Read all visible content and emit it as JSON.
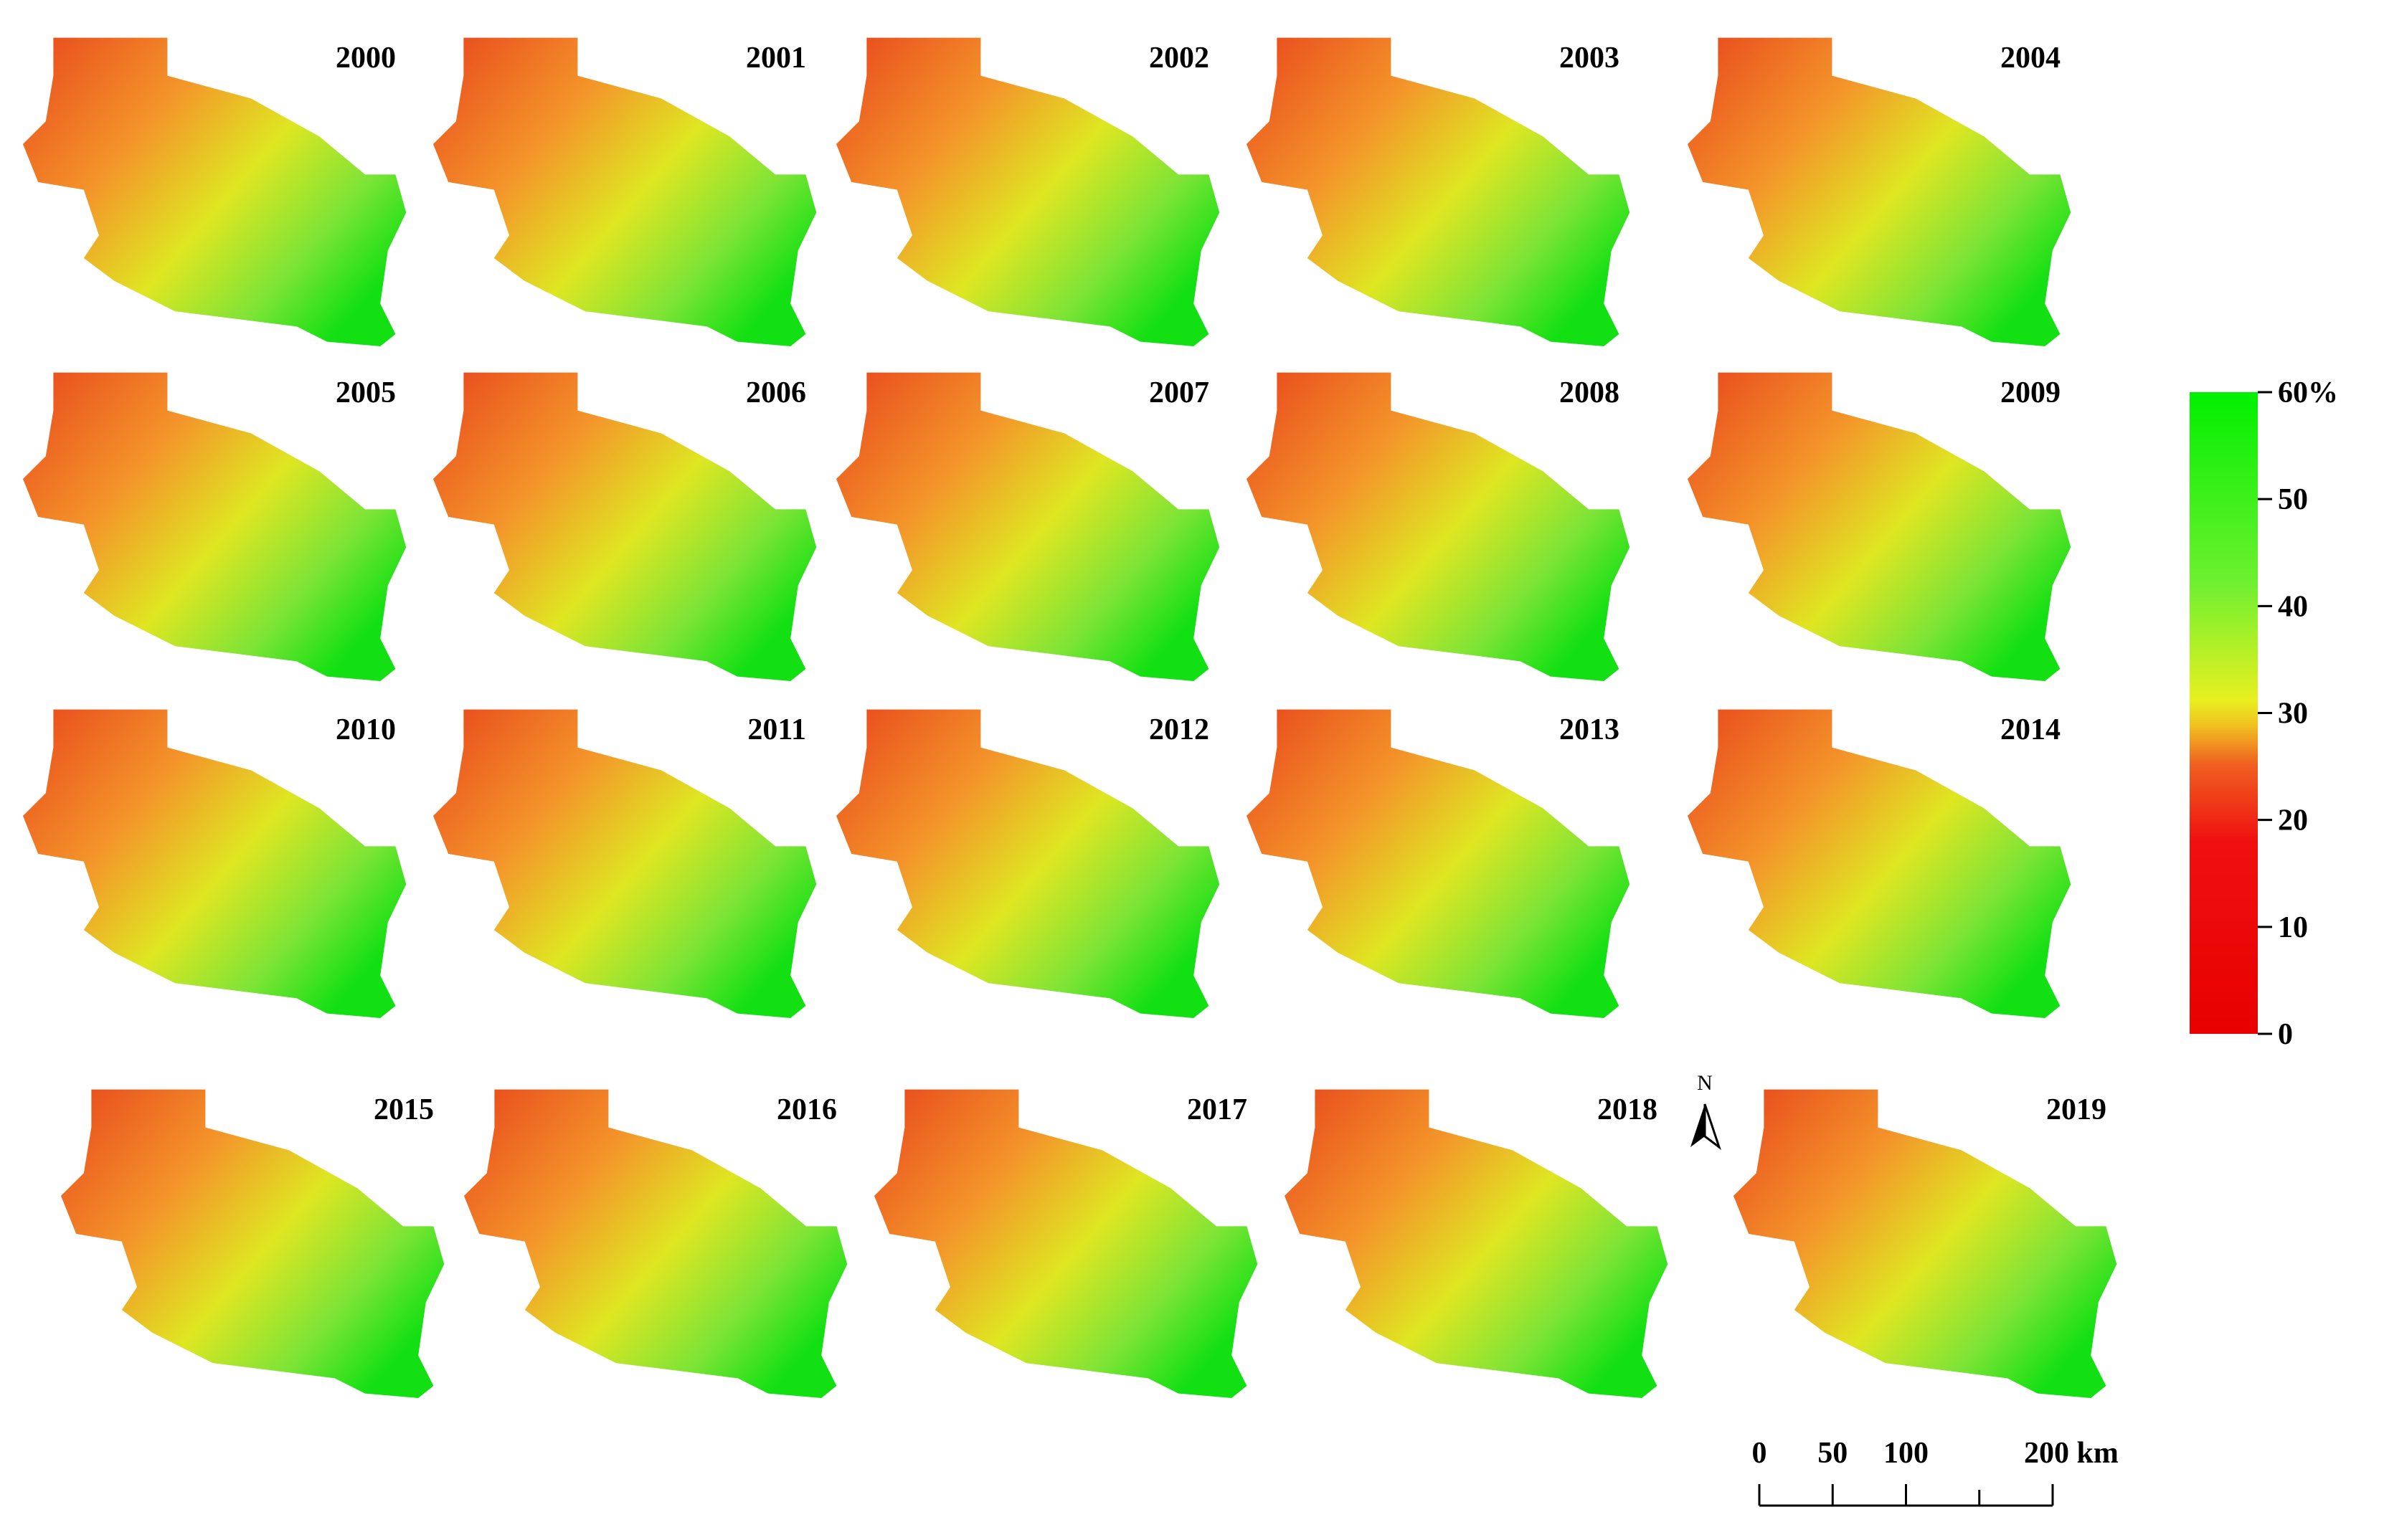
{
  "maps": [
    {
      "label": "2000"
    },
    {
      "label": "2001"
    },
    {
      "label": "2002"
    },
    {
      "label": "2003"
    },
    {
      "label": "2004"
    },
    {
      "label": "2005"
    },
    {
      "label": "2006"
    },
    {
      "label": "2007"
    },
    {
      "label": "2008"
    },
    {
      "label": "2009"
    },
    {
      "label": "2010"
    },
    {
      "label": "2011"
    },
    {
      "label": "2012"
    },
    {
      "label": "2013"
    },
    {
      "label": "2014"
    },
    {
      "label": "2015"
    },
    {
      "label": "2016"
    },
    {
      "label": "2017"
    },
    {
      "label": "2018"
    },
    {
      "label": "2019"
    }
  ],
  "colorbar": {
    "ticks": [
      0,
      10,
      20,
      30,
      40,
      50,
      {
        "value": 60,
        "label": "60%"
      }
    ]
  },
  "north": "N",
  "scale_bar": {
    "ticks": [
      0,
      50,
      100,
      {
        "value": 200,
        "label": "200 km"
      }
    ]
  }
}
